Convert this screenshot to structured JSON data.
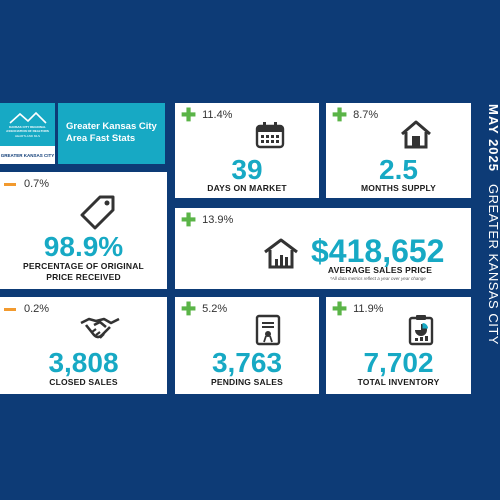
{
  "header": {
    "title_line1": "Greater Kansas City",
    "title_line2": "Area Fast Stats",
    "logo_text": "KANSAS CITY REGIONAL ASSOCIATION OF REALTORS",
    "logo_sub": "HEARTLAND MLS",
    "region_label": "GREATER KANSAS CITY"
  },
  "side": {
    "month": "MAY 2025",
    "region": "GREATER KANSAS CITY"
  },
  "stats": {
    "days_on_market": {
      "change": "11.4%",
      "value": "39",
      "label": "DAYS ON MARKET"
    },
    "months_supply": {
      "change": "8.7%",
      "value": "2.5",
      "label": "MONTHS SUPPLY"
    },
    "pct_original_price": {
      "change": "0.7%",
      "value": "98.9%",
      "label_line1": "PERCENTAGE OF ORIGINAL",
      "label_line2": "PRICE RECEIVED"
    },
    "avg_sales_price": {
      "change": "13.9%",
      "value": "$418,652",
      "label": "AVERAGE SALES PRICE",
      "note": "*All data metrics reflect a year over year change"
    },
    "closed_sales": {
      "change": "0.2%",
      "value": "3,808",
      "label": "CLOSED SALES"
    },
    "pending_sales": {
      "change": "5.2%",
      "value": "3,763",
      "label": "PENDING SALES"
    },
    "total_inventory": {
      "change": "11.9%",
      "value": "7,702",
      "label": "TOTAL INVENTORY"
    }
  },
  "colors": {
    "background": "#0d3b76",
    "accent": "#17a9c4",
    "up": "#5ab447",
    "down": "#f29a2e"
  }
}
